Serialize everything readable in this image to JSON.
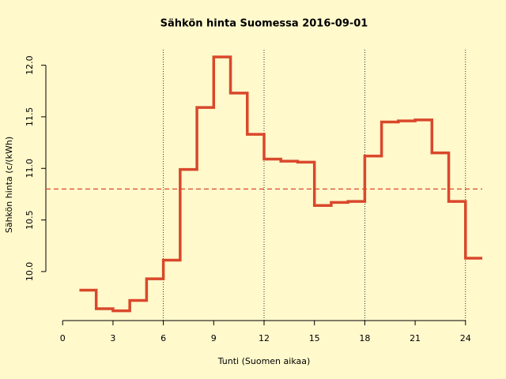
{
  "chart_data": {
    "type": "step",
    "title": "Sähkön hinta Suomessa 2016-09-01",
    "x_label": "Tunti (Suomen aikaa)",
    "y_label": "Sähkön hinta (c/(kWh)",
    "x": [
      1,
      2,
      3,
      4,
      5,
      6,
      7,
      8,
      9,
      10,
      11,
      12,
      13,
      14,
      15,
      16,
      17,
      18,
      19,
      20,
      21,
      22,
      23,
      24
    ],
    "series": [
      {
        "color": "#d9482b",
        "values": [
          9.82,
          9.64,
          9.62,
          9.72,
          9.93,
          10.11,
          10.99,
          11.59,
          12.08,
          11.73,
          11.33,
          11.09,
          11.07,
          11.06,
          10.64,
          10.67,
          10.68,
          11.12,
          11.45,
          11.46,
          11.47,
          11.15,
          10.68,
          10.13
        ]
      }
    ],
    "mean_line": {
      "value": 10.8,
      "color": "#d9482b"
    },
    "vlines": [
      6,
      12,
      18,
      24
    ],
    "xlim": [
      -1,
      25
    ],
    "ylim": [
      9.525,
      12.15
    ],
    "xticks": [
      0,
      3,
      6,
      9,
      12,
      15,
      18,
      21,
      24
    ],
    "yticks": [
      {
        "value": 10,
        "label": "10.0"
      },
      10.5,
      {
        "value": 11,
        "label": "11.0"
      },
      11.5,
      {
        "value": 12,
        "label": "12.0"
      }
    ],
    "background": "#fff9cc"
  }
}
